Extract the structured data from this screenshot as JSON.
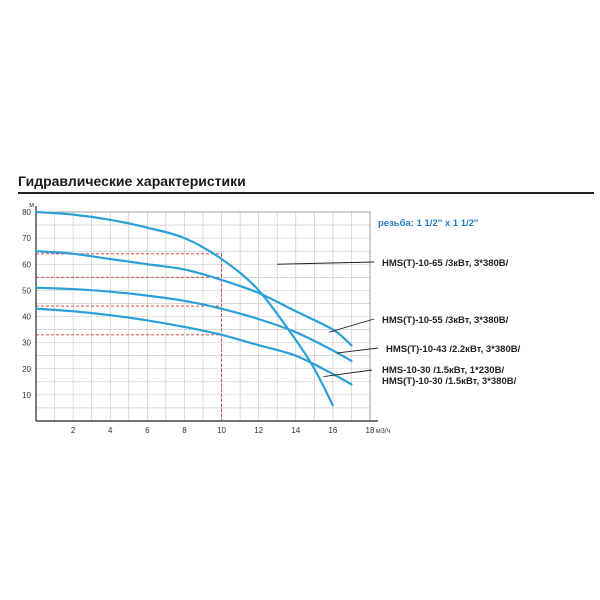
{
  "page": {
    "title": "Гидравлические характеристики"
  },
  "chart_data": {
    "type": "line",
    "title": "Гидравлические характеристики",
    "xlabel": "м3/ч",
    "ylabel": "м",
    "xlim": [
      0,
      18
    ],
    "ylim": [
      0,
      80
    ],
    "x_ticks": [
      2,
      4,
      6,
      8,
      10,
      12,
      14,
      16,
      18
    ],
    "y_ticks": [
      10,
      20,
      30,
      40,
      50,
      60,
      70,
      80
    ],
    "grid": true,
    "curve_color": "#2b9fd8",
    "ref_color": "#d63030",
    "annotation": "резьба: 1 1/2\" x 1 1/2\"",
    "series": [
      {
        "name": "HMS(T)-10-65 /3кВт, 3*380В/",
        "x": [
          0,
          2,
          4,
          6,
          8,
          10,
          12,
          14,
          15,
          16
        ],
        "y": [
          80,
          79,
          77,
          74,
          70,
          62,
          50,
          31,
          20,
          6
        ]
      },
      {
        "name": "HMS(T)-10-55 /3кВт, 3*380В/",
        "x": [
          0,
          2,
          4,
          6,
          8,
          10,
          12,
          14,
          16,
          17
        ],
        "y": [
          65,
          64,
          62,
          60,
          58,
          54,
          49,
          42,
          35,
          29
        ]
      },
      {
        "name": "HMS(T)-10-43 /2.2кВт, 3*380В/",
        "x": [
          0,
          2,
          4,
          6,
          8,
          10,
          12,
          14,
          16,
          17
        ],
        "y": [
          51,
          50.5,
          49.5,
          48,
          46,
          43,
          39,
          34,
          27,
          23
        ]
      },
      {
        "name": "HMS-10-30 /1.5кВт, 1*230В/\nHMS(T)-10-30 /1.5кВт, 3*380В/",
        "x": [
          0,
          2,
          4,
          6,
          8,
          10,
          12,
          14,
          16,
          17
        ],
        "y": [
          43,
          42,
          40.5,
          38.5,
          36,
          33,
          29,
          25,
          18,
          14
        ]
      }
    ],
    "reference_lines": {
      "horizontal": [
        64,
        55,
        44,
        33
      ],
      "vertical": [
        10
      ]
    }
  }
}
